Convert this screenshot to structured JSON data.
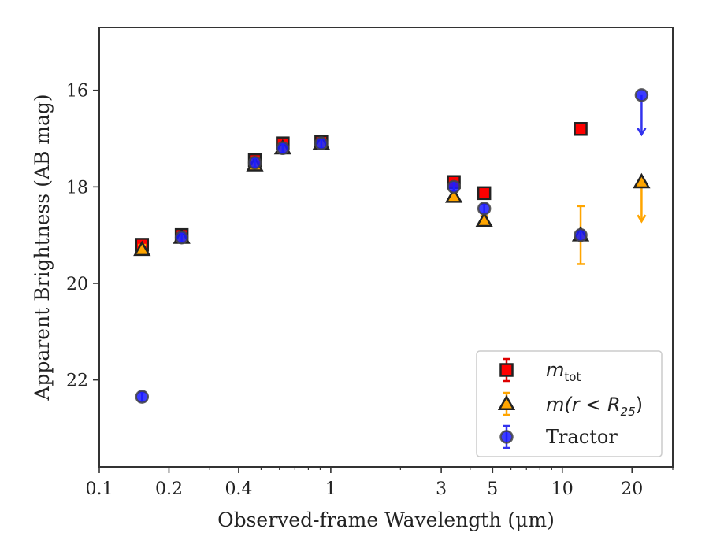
{
  "chart_data": {
    "type": "scatter",
    "xlabel": "Observed-frame Wavelength (μm)",
    "ylabel": "Apparent Brightness (AB mag)",
    "xscale": "log",
    "xlim": [
      0.1,
      30
    ],
    "ylim": [
      23.8,
      14.7
    ],
    "y_inverted": true,
    "grid": false,
    "legend_position": "lower-right",
    "x_ticks": [
      0.1,
      0.2,
      0.4,
      1,
      3,
      5,
      10,
      20
    ],
    "x_tick_labels": [
      "0.1",
      "0.2",
      "0.4",
      "1",
      "3",
      "5",
      "10",
      "20"
    ],
    "y_ticks": [
      16,
      18,
      20,
      22
    ],
    "y_tick_labels": [
      "16",
      "18",
      "20",
      "22"
    ],
    "series": [
      {
        "key": "mtot",
        "legend_main": "m",
        "legend_sub": "tot",
        "marker": "square",
        "color": "#ff0000",
        "error_color": "#dd0000",
        "points": [
          {
            "x": 0.153,
            "y": 19.2
          },
          {
            "x": 0.227,
            "y": 19.0
          },
          {
            "x": 0.47,
            "y": 17.45
          },
          {
            "x": 0.62,
            "y": 17.1
          },
          {
            "x": 0.91,
            "y": 17.07
          },
          {
            "x": 3.4,
            "y": 17.9
          },
          {
            "x": 4.6,
            "y": 18.13
          },
          {
            "x": 12.0,
            "y": 16.8
          }
        ]
      },
      {
        "key": "mr25",
        "legend_main": "m(r < R",
        "legend_sub": "25",
        "legend_tail": ")",
        "marker": "triangle",
        "color": "#ffa500",
        "error_color": "#ffa500",
        "points": [
          {
            "x": 0.153,
            "y": 19.3
          },
          {
            "x": 0.227,
            "y": 19.05
          },
          {
            "x": 0.47,
            "y": 17.55
          },
          {
            "x": 0.62,
            "y": 17.2
          },
          {
            "x": 0.91,
            "y": 17.1
          },
          {
            "x": 3.4,
            "y": 18.2
          },
          {
            "x": 4.6,
            "y": 18.7
          },
          {
            "x": 12.0,
            "y": 19.0,
            "err": 0.6
          },
          {
            "x": 22.0,
            "y": 17.9,
            "upper_limit": true
          }
        ]
      },
      {
        "key": "tractor",
        "legend_main": "Tractor",
        "marker": "circle",
        "color": "#1a1aff",
        "error_color": "#3333ee",
        "points": [
          {
            "x": 0.153,
            "y": 22.35
          },
          {
            "x": 0.227,
            "y": 19.05
          },
          {
            "x": 0.47,
            "y": 17.5
          },
          {
            "x": 0.62,
            "y": 17.2
          },
          {
            "x": 0.91,
            "y": 17.1
          },
          {
            "x": 3.4,
            "y": 18.0
          },
          {
            "x": 4.6,
            "y": 18.45
          },
          {
            "x": 12.0,
            "y": 19.0
          },
          {
            "x": 22.0,
            "y": 16.1,
            "upper_limit": true
          }
        ]
      }
    ]
  }
}
